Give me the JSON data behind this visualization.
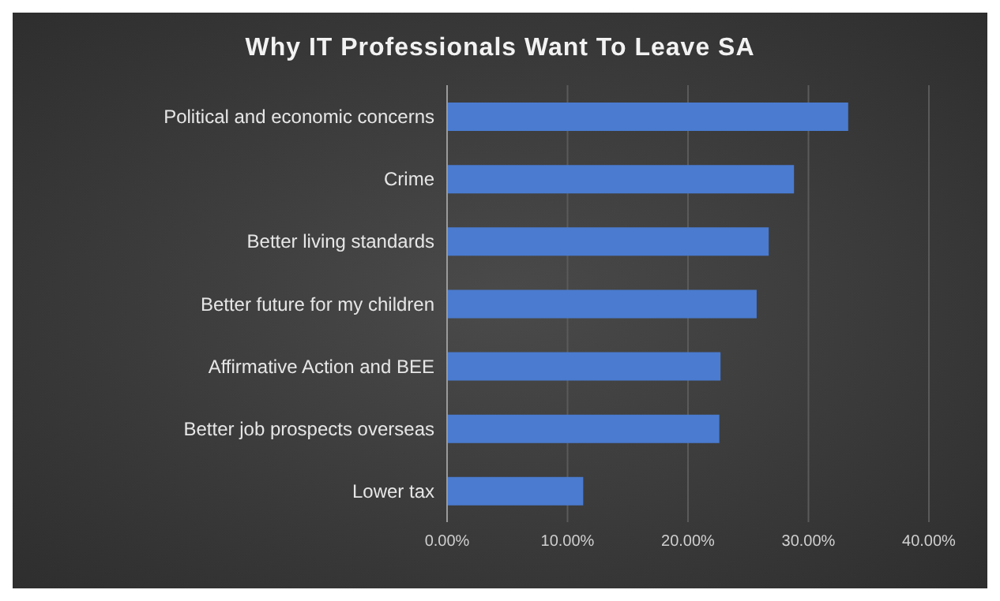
{
  "chart_data": {
    "type": "bar",
    "orientation": "horizontal",
    "title": "Why IT Professionals Want To Leave SA",
    "categories": [
      "Political and economic concerns",
      "Crime",
      "Better living standards",
      "Better future for my children",
      "Affirmative Action and BEE",
      "Better job prospects overseas",
      "Lower tax"
    ],
    "values": [
      33.3,
      28.8,
      26.7,
      25.7,
      22.7,
      22.6,
      11.3
    ],
    "color": "#4a7bd0",
    "xlim": [
      0,
      40
    ],
    "xticks": [
      {
        "value": 0,
        "label": "0.00%"
      },
      {
        "value": 10,
        "label": "10.00%"
      },
      {
        "value": 20,
        "label": "20.00%"
      },
      {
        "value": 30,
        "label": "30.00%"
      },
      {
        "value": 40,
        "label": "40.00%"
      }
    ],
    "grid": "x"
  }
}
